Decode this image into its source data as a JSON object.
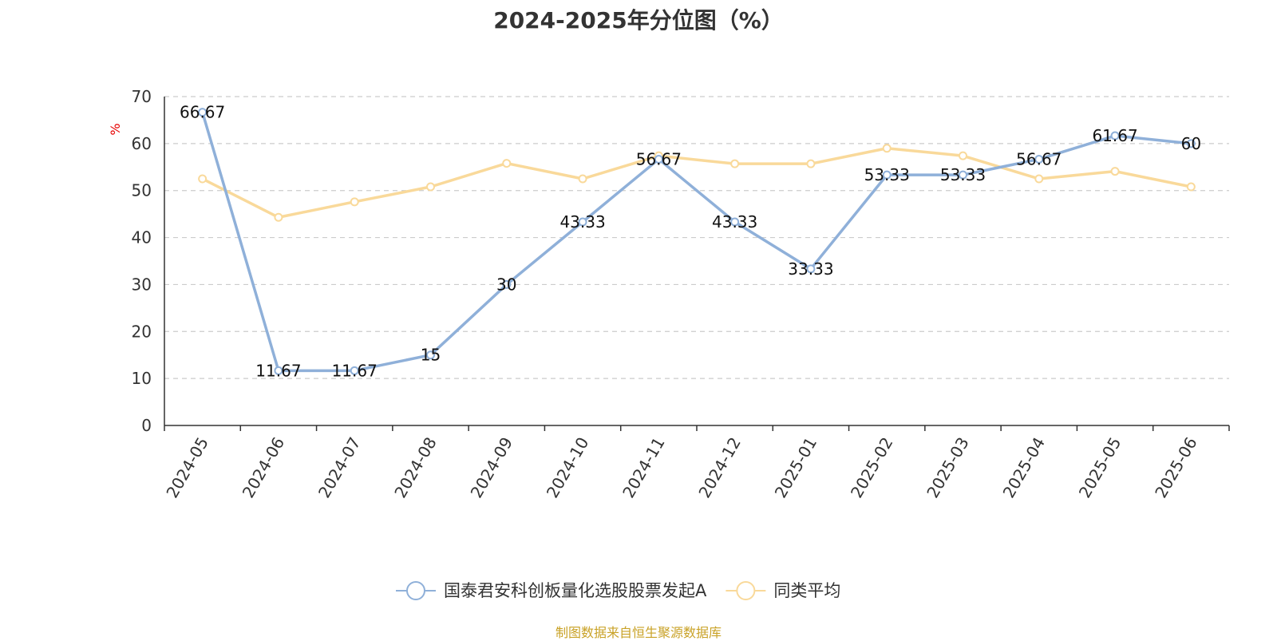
{
  "chart_data": {
    "type": "line",
    "title": "2024-2025年分位图（%）",
    "ylabel": "%",
    "xlabel": "",
    "ylim": [
      0,
      70
    ],
    "yticks": [
      0,
      10,
      20,
      30,
      40,
      50,
      60,
      70
    ],
    "grid": true,
    "legend_position": "bottom-center",
    "categories": [
      "2024-05",
      "2024-06",
      "2024-07",
      "2024-08",
      "2024-09",
      "2024-10",
      "2024-11",
      "2024-12",
      "2025-01",
      "2025-02",
      "2025-03",
      "2025-04",
      "2025-05",
      "2025-06"
    ],
    "series": [
      {
        "name": "国泰君安科创板量化选股股票发起A",
        "color": "#8fb0d9",
        "values": [
          66.67,
          11.67,
          11.67,
          15,
          30,
          43.33,
          56.67,
          43.33,
          33.33,
          53.33,
          53.33,
          56.67,
          61.67,
          60
        ],
        "show_labels": true
      },
      {
        "name": "同类平均",
        "color": "#f9d99a",
        "values": [
          52.5,
          44.3,
          47.6,
          50.8,
          55.8,
          52.5,
          57.4,
          55.7,
          55.7,
          59.0,
          57.4,
          52.5,
          54.1,
          50.8
        ],
        "show_labels": false
      }
    ]
  },
  "source_note": "制图数据来自恒生聚源数据库",
  "colors": {
    "source_note": "#c9a227",
    "grid": "#cccccc",
    "axis": "#333333",
    "ylabel": "#e60000"
  }
}
